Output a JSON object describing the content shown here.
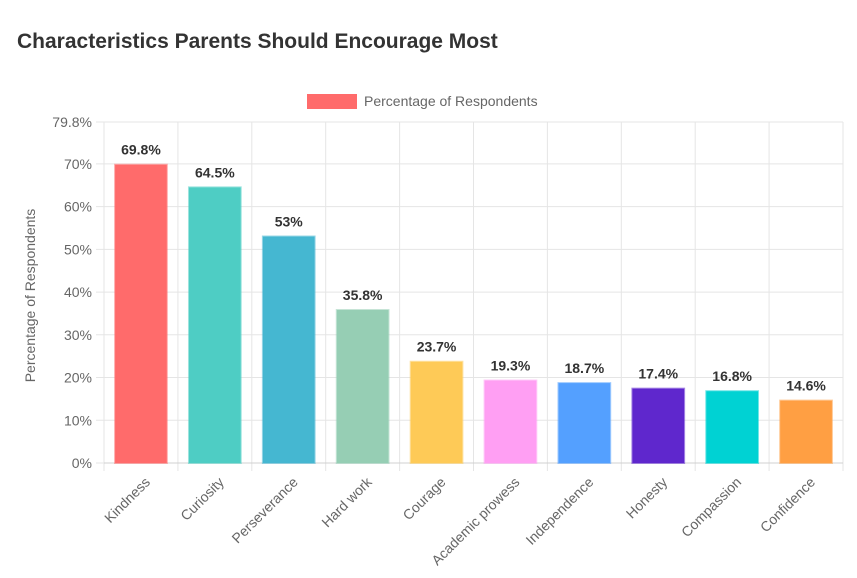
{
  "chart_data": {
    "type": "bar",
    "title": "Characteristics Parents Should Encourage Most",
    "legend": {
      "label": "Percentage of Respondents",
      "position": "top",
      "color": "#ff6b6b"
    },
    "xlabel": "",
    "ylabel": "Percentage of Respondents",
    "ylim": [
      0,
      79.8
    ],
    "yticks": [
      {
        "value": 0,
        "label": "0%"
      },
      {
        "value": 10,
        "label": "10%"
      },
      {
        "value": 20,
        "label": "20%"
      },
      {
        "value": 30,
        "label": "30%"
      },
      {
        "value": 40,
        "label": "40%"
      },
      {
        "value": 50,
        "label": "50%"
      },
      {
        "value": 60,
        "label": "60%"
      },
      {
        "value": 70,
        "label": "70%"
      },
      {
        "value": 79.8,
        "label": "79.8%"
      }
    ],
    "grid": true,
    "categories": [
      "Kindness",
      "Curiosity",
      "Perseverance",
      "Hard work",
      "Courage",
      "Academic prowess",
      "Independence",
      "Honesty",
      "Compassion",
      "Confidence"
    ],
    "values": [
      69.8,
      64.5,
      53,
      35.8,
      23.7,
      19.3,
      18.7,
      17.4,
      16.8,
      14.6
    ],
    "data_labels": [
      "69.8%",
      "64.5%",
      "53%",
      "35.8%",
      "23.7%",
      "19.3%",
      "18.7%",
      "17.4%",
      "16.8%",
      "14.6%"
    ],
    "colors": [
      "#ff6b6b",
      "#4ecdc4",
      "#45b7d1",
      "#96ceb4",
      "#feca57",
      "#ff9ff3",
      "#54a0ff",
      "#5f27cd",
      "#00d2d3",
      "#ff9f43"
    ]
  }
}
